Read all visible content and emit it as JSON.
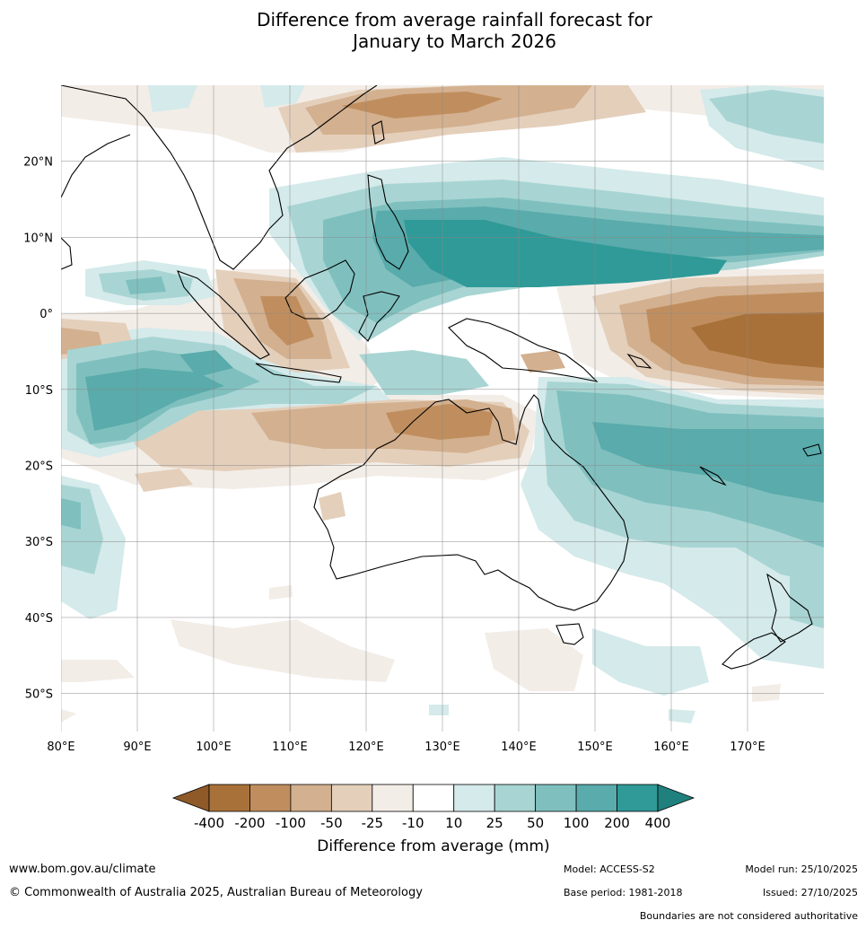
{
  "title": {
    "line1": "Difference from average rainfall forecast for",
    "line2": "January to March 2026"
  },
  "map": {
    "lon_range": [
      80,
      180
    ],
    "lat_range": [
      -55,
      30
    ],
    "lon_ticks": [
      {
        "value": 80,
        "label": "80°E"
      },
      {
        "value": 90,
        "label": "90°E"
      },
      {
        "value": 100,
        "label": "100°E"
      },
      {
        "value": 110,
        "label": "110°E"
      },
      {
        "value": 120,
        "label": "120°E"
      },
      {
        "value": 130,
        "label": "130°E"
      },
      {
        "value": 140,
        "label": "140°E"
      },
      {
        "value": 150,
        "label": "150°E"
      },
      {
        "value": 160,
        "label": "160°E"
      },
      {
        "value": 170,
        "label": "170°E"
      }
    ],
    "lat_ticks": [
      {
        "value": 20,
        "label": "20°N"
      },
      {
        "value": 10,
        "label": "10°N"
      },
      {
        "value": 0,
        "label": "0°"
      },
      {
        "value": -10,
        "label": "10°S"
      },
      {
        "value": -20,
        "label": "20°S"
      },
      {
        "value": -30,
        "label": "30°S"
      },
      {
        "value": -40,
        "label": "40°S"
      },
      {
        "value": -50,
        "label": "50°S"
      }
    ]
  },
  "colorbar": {
    "title": "Difference from average (mm)",
    "labels": [
      "-400",
      "-200",
      "-100",
      "-50",
      "-25",
      "-10",
      "10",
      "25",
      "50",
      "100",
      "200",
      "400"
    ],
    "colors": [
      "#a9713a",
      "#c08e5e",
      "#d3b08f",
      "#e4cfbb",
      "#f3ede7",
      "#ffffff",
      "#d5eaea",
      "#a8d5d3",
      "#7fc0bf",
      "#5aabab",
      "#2f9a98"
    ],
    "under_color": "#8f5a28",
    "over_color": "#20807d"
  },
  "footer": {
    "website": "www.bom.gov.au/climate",
    "copyright": "© Commonwealth of Australia 2025, Australian Bureau of Meteorology",
    "model": "Model: ACCESS-S2",
    "base_period": "Base period: 1981-2018",
    "model_run": "Model run: 25/10/2025",
    "issued": "Issued: 27/10/2025",
    "disclaimer": "Boundaries are not considered authoritative"
  }
}
